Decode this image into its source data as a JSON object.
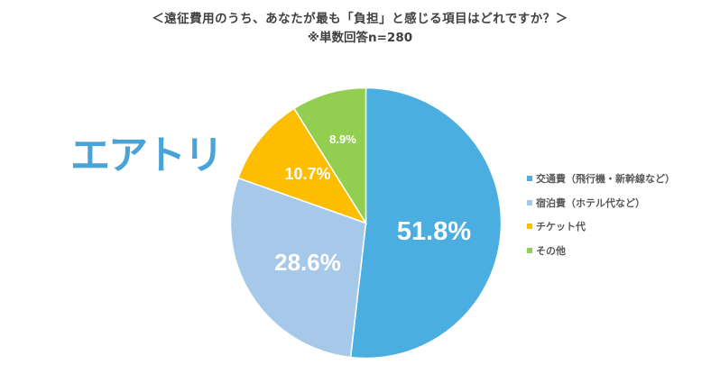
{
  "header": {
    "title": "＜遠征費用のうち、あなたが最も「負担」と感じる項目はどれですか？＞",
    "subtitle": "※単数回答n=280"
  },
  "logo": {
    "text": "エアトリ",
    "color": "#4aa3d6"
  },
  "chart_data": {
    "type": "pie",
    "title": "＜遠征費用のうち、あなたが最も「負担」と感じる項目はどれですか？＞",
    "subtitle": "※単数回答n=280",
    "categories": [
      "交通費（飛行機・新幹線など）",
      "宿泊費（ホテル代など）",
      "チケット代",
      "その他"
    ],
    "values": [
      51.8,
      28.6,
      10.7,
      8.9
    ],
    "labels": [
      "51.8%",
      "28.6%",
      "10.7%",
      "8.9%"
    ],
    "colors": [
      "#4aaee0",
      "#a6c9ea",
      "#fdbd00",
      "#92cf50"
    ],
    "start_angle": "12 o'clock, clockwise",
    "legend_position": "right"
  }
}
